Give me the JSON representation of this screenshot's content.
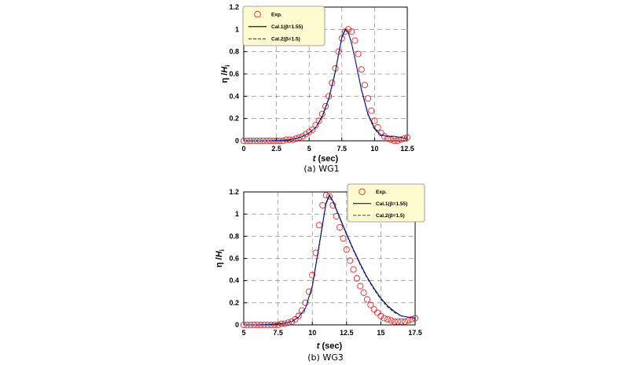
{
  "chart_data": [
    {
      "type": "line",
      "caption": "(a) WG1",
      "xlabel": "t (sec)",
      "ylabel": "η /H",
      "ylabel_sub": "i",
      "xlim": [
        0,
        12.5
      ],
      "ylim": [
        0,
        1.2
      ],
      "xticks": [
        "0",
        "2.5",
        "5",
        "7.5",
        "10",
        "12.5"
      ],
      "yticks": [
        "0",
        "0.2",
        "0.4",
        "0.6",
        "0.8",
        "1",
        "1.2"
      ],
      "grid": true,
      "legend_position": "top-left",
      "series": [
        {
          "name": "Exp.",
          "style": "scatter",
          "color": "#e8262a",
          "x": [
            0,
            0.25,
            0.5,
            0.75,
            1,
            1.25,
            1.5,
            1.75,
            2,
            2.25,
            2.5,
            2.75,
            3,
            3.25,
            3.5,
            3.75,
            4,
            4.25,
            4.5,
            4.75,
            5,
            5.25,
            5.5,
            5.75,
            6,
            6.25,
            6.5,
            6.75,
            7,
            7.25,
            7.5,
            7.75,
            8,
            8.25,
            8.5,
            8.75,
            9,
            9.25,
            9.5,
            9.75,
            10,
            10.25,
            10.5,
            10.75,
            11,
            11.25,
            11.5,
            11.75,
            12,
            12.25,
            12.5
          ],
          "y": [
            0,
            0,
            0,
            0,
            0,
            0,
            0,
            0,
            0,
            0,
            0,
            0,
            0,
            0.01,
            0.01,
            0.01,
            0.02,
            0.03,
            0.04,
            0.06,
            0.08,
            0.1,
            0.14,
            0.18,
            0.24,
            0.31,
            0.4,
            0.52,
            0.65,
            0.8,
            0.92,
            0.98,
            1.0,
            0.98,
            0.9,
            0.78,
            0.64,
            0.5,
            0.38,
            0.27,
            0.18,
            0.12,
            0.07,
            0.04,
            0.02,
            0.01,
            0,
            0,
            0.01,
            0.02,
            0.03
          ]
        },
        {
          "name": "Cal.1(β=1.55)",
          "style": "solid",
          "color": "#000000",
          "x": [
            0,
            1,
            2,
            3,
            3.5,
            4,
            4.5,
            5,
            5.5,
            6,
            6.5,
            7,
            7.25,
            7.5,
            7.75,
            8,
            8.25,
            8.5,
            9,
            9.5,
            10,
            10.5,
            11,
            11.5,
            12,
            12.5
          ],
          "y": [
            0,
            0,
            0,
            0.005,
            0.01,
            0.02,
            0.04,
            0.07,
            0.12,
            0.22,
            0.38,
            0.62,
            0.78,
            0.93,
            1.0,
            0.97,
            0.87,
            0.74,
            0.46,
            0.24,
            0.11,
            0.05,
            0.04,
            0.04,
            0.03,
            0.02
          ]
        },
        {
          "name": "Cal.2(β=1.5)",
          "style": "dashed",
          "color": "#2a3bd8",
          "x": [
            0,
            1,
            2,
            3,
            3.5,
            4,
            4.5,
            5,
            5.5,
            6,
            6.5,
            7,
            7.25,
            7.5,
            7.75,
            8,
            8.25,
            8.5,
            9,
            9.5,
            10,
            10.5,
            11,
            11.5,
            12,
            12.5
          ],
          "y": [
            0,
            0,
            0,
            0.005,
            0.01,
            0.02,
            0.04,
            0.07,
            0.12,
            0.21,
            0.37,
            0.61,
            0.77,
            0.92,
            0.99,
            0.97,
            0.87,
            0.74,
            0.45,
            0.23,
            0.1,
            0.05,
            0.04,
            0.04,
            0.03,
            0.02
          ]
        }
      ]
    },
    {
      "type": "line",
      "caption": "(b) WG3",
      "xlabel": "t (sec)",
      "ylabel": "η /H",
      "ylabel_sub": "i",
      "xlim": [
        5,
        17.5
      ],
      "ylim": [
        0,
        1.2
      ],
      "xticks": [
        "5",
        "7.5",
        "10",
        "12.5",
        "15",
        "17.5"
      ],
      "yticks": [
        "0",
        "0.2",
        "0.4",
        "0.6",
        "0.8",
        "1",
        "1.2"
      ],
      "grid": true,
      "legend_position": "top-right",
      "series": [
        {
          "name": "Exp.",
          "style": "scatter",
          "color": "#e8262a",
          "x": [
            5,
            5.25,
            5.5,
            5.75,
            6,
            6.25,
            6.5,
            6.75,
            7,
            7.25,
            7.5,
            7.75,
            8,
            8.25,
            8.5,
            8.75,
            9,
            9.25,
            9.5,
            9.75,
            10,
            10.25,
            10.5,
            10.75,
            11,
            11.25,
            11.5,
            11.75,
            12,
            12.25,
            12.5,
            12.75,
            13,
            13.25,
            13.5,
            13.75,
            14,
            14.25,
            14.5,
            14.75,
            15,
            15.25,
            15.5,
            15.75,
            16,
            16.25,
            16.5,
            16.75,
            17,
            17.25,
            17.5
          ],
          "y": [
            0,
            0,
            0,
            0,
            0,
            0,
            0,
            0,
            0,
            0,
            0,
            0.01,
            0.01,
            0.02,
            0.03,
            0.05,
            0.08,
            0.13,
            0.2,
            0.3,
            0.45,
            0.65,
            0.9,
            1.08,
            1.17,
            1.16,
            1.08,
            0.98,
            0.88,
            0.78,
            0.68,
            0.58,
            0.5,
            0.42,
            0.35,
            0.29,
            0.23,
            0.18,
            0.14,
            0.11,
            0.08,
            0.06,
            0.05,
            0.04,
            0.03,
            0.03,
            0.03,
            0.03,
            0.04,
            0.05,
            0.06
          ]
        },
        {
          "name": "Cal.1(β=1.55)",
          "style": "solid",
          "color": "#000000",
          "x": [
            5,
            6,
            7,
            8,
            8.5,
            9,
            9.5,
            10,
            10.5,
            11,
            11.25,
            11.5,
            12,
            12.5,
            13,
            13.5,
            14,
            14.5,
            15,
            15.5,
            16,
            16.5,
            17,
            17.5
          ],
          "y": [
            0,
            0,
            0.005,
            0.015,
            0.03,
            0.07,
            0.15,
            0.35,
            0.72,
            1.1,
            1.17,
            1.12,
            0.97,
            0.82,
            0.68,
            0.55,
            0.43,
            0.33,
            0.24,
            0.17,
            0.12,
            0.08,
            0.07,
            0.06
          ]
        },
        {
          "name": "Cal.2(β=1.5)",
          "style": "dashed",
          "color": "#2a3bd8",
          "x": [
            5,
            6,
            7,
            8,
            8.5,
            9,
            9.5,
            10,
            10.5,
            11,
            11.25,
            11.5,
            12,
            12.5,
            13,
            13.5,
            14,
            14.5,
            15,
            15.5,
            16,
            16.5,
            17,
            17.5
          ],
          "y": [
            0,
            0,
            0.005,
            0.015,
            0.03,
            0.07,
            0.15,
            0.34,
            0.7,
            1.09,
            1.16,
            1.11,
            0.96,
            0.81,
            0.67,
            0.54,
            0.42,
            0.32,
            0.23,
            0.16,
            0.11,
            0.08,
            0.07,
            0.06
          ]
        }
      ]
    }
  ]
}
